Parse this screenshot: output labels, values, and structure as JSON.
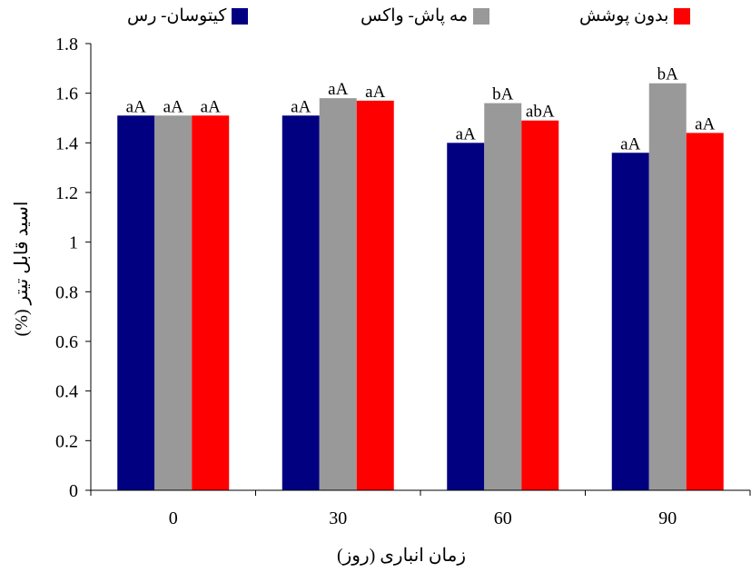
{
  "chart_data": {
    "type": "bar",
    "categories": [
      "0",
      "30",
      "60",
      "90"
    ],
    "series": [
      {
        "name": "کیتوسان- رس",
        "color": "#000080",
        "values": [
          1.51,
          1.51,
          1.4,
          1.36
        ],
        "labels": [
          "aA",
          "aA",
          "aA",
          "aA"
        ]
      },
      {
        "name": "مه پاش- واکس",
        "color": "#999999",
        "values": [
          1.51,
          1.58,
          1.56,
          1.64
        ],
        "labels": [
          "aA",
          "aA",
          "bA",
          "bA"
        ]
      },
      {
        "name": "بدون پوشش",
        "color": "#ff0000",
        "values": [
          1.51,
          1.57,
          1.49,
          1.44
        ],
        "labels": [
          "aA",
          "aA",
          "abA",
          "aA"
        ]
      }
    ],
    "xlabel": "زمان انباری (روز)",
    "ylabel": "اسید قابل تیتر (%)",
    "ylim": [
      0,
      1.8
    ],
    "yticks": [
      "0",
      "0.2",
      "0.4",
      "0.6",
      "0.8",
      "1",
      "1.2",
      "1.4",
      "1.6",
      "1.8"
    ],
    "grid": false,
    "legend_position": "top"
  }
}
